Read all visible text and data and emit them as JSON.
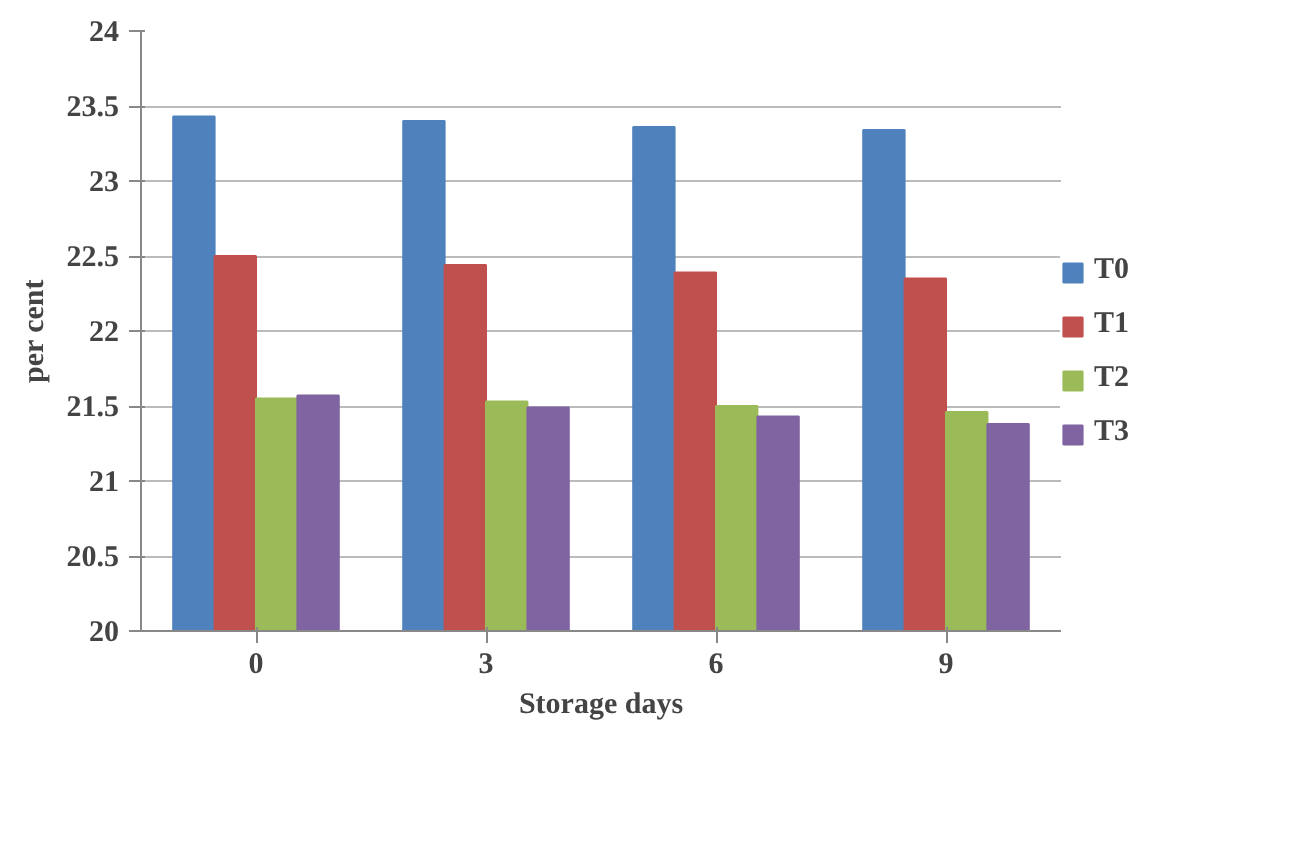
{
  "chart_data": {
    "type": "bar",
    "xlabel": "Storage days",
    "ylabel": "per cent",
    "categories": [
      "0",
      "3",
      "6",
      "9"
    ],
    "series": [
      {
        "name": "T0",
        "color": "#4f81bd",
        "values": [
          23.43,
          23.4,
          23.36,
          23.34
        ]
      },
      {
        "name": "T1",
        "color": "#c0504d",
        "values": [
          22.5,
          22.44,
          22.39,
          22.35
        ]
      },
      {
        "name": "T2",
        "color": "#9bbb59",
        "values": [
          21.55,
          21.53,
          21.5,
          21.46
        ]
      },
      {
        "name": "T3",
        "color": "#8064a2",
        "values": [
          21.57,
          21.49,
          21.43,
          21.38
        ]
      }
    ],
    "ylim": [
      20,
      24
    ],
    "yticks": [
      20,
      20.5,
      21,
      21.5,
      22,
      22.5,
      23,
      23.5,
      24
    ],
    "grid": "y",
    "legend": "right"
  }
}
